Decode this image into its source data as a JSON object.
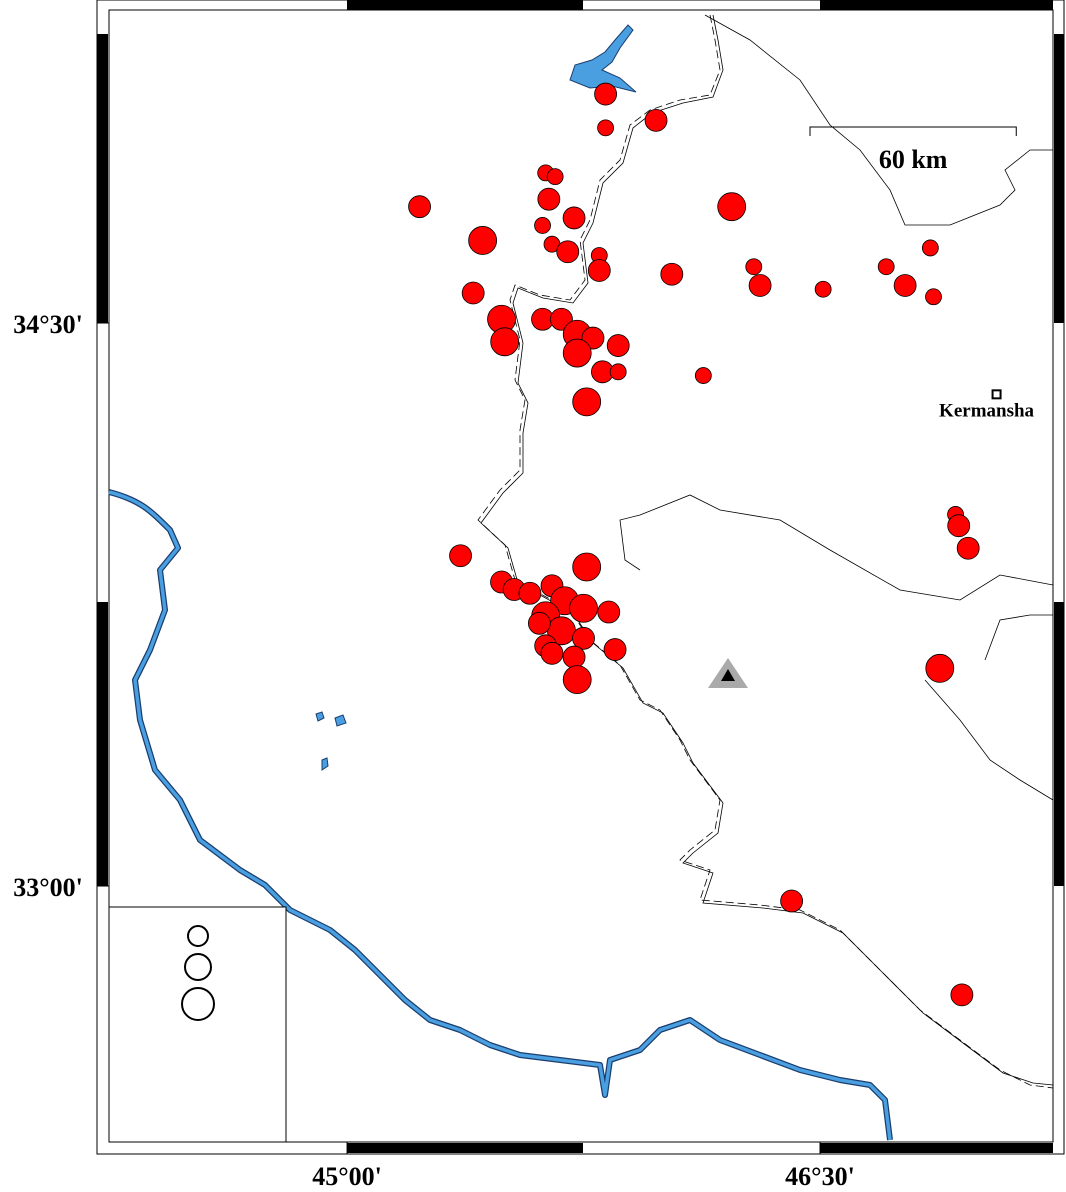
{
  "chart_data": {
    "type": "scatter",
    "xlim": [
      44.245,
      47.239
    ],
    "ylim": [
      32.318,
      35.334
    ],
    "xticks": [
      {
        "value": 45,
        "label": "45°00'"
      },
      {
        "value": 46.5,
        "label": "46°30'"
      }
    ],
    "yticks": [
      {
        "value": 34.5,
        "label": "34°30'"
      },
      {
        "value": 33,
        "label": "33°00'"
      }
    ],
    "color": "#ff0000",
    "x": [
      45.82,
      45.82,
      45.98,
      46.22,
      45.23,
      45.43,
      45.63,
      45.66,
      45.64,
      45.72,
      45.62,
      45.65,
      45.7,
      45.8,
      45.8,
      46.03,
      46.29,
      46.31,
      46.51,
      46.71,
      46.77,
      46.85,
      46.86,
      45.4,
      45.49,
      45.5,
      45.62,
      45.68,
      45.73,
      45.78,
      45.73,
      45.86,
      45.81,
      45.86,
      46.13,
      45.76,
      46.93,
      46.94,
      46.97,
      45.36,
      45.76,
      45.49,
      45.53,
      45.58,
      45.65,
      45.69,
      45.75,
      45.83,
      45.63,
      45.68,
      45.61,
      45.75,
      45.63,
      45.65,
      45.72,
      45.85,
      45.73,
      46.88,
      46.41,
      46.95
    ],
    "y": [
      35.11,
      35.02,
      35.04,
      34.81,
      34.81,
      34.72,
      34.9,
      34.89,
      34.83,
      34.78,
      34.76,
      34.71,
      34.69,
      34.68,
      34.64,
      34.63,
      34.65,
      34.6,
      34.59,
      34.65,
      34.6,
      34.7,
      34.57,
      34.58,
      34.51,
      34.45,
      34.51,
      34.51,
      34.47,
      34.46,
      34.42,
      34.44,
      34.37,
      34.37,
      34.36,
      34.29,
      33.99,
      33.96,
      33.9,
      33.88,
      33.85,
      33.81,
      33.79,
      33.78,
      33.8,
      33.76,
      33.74,
      33.73,
      33.72,
      33.68,
      33.7,
      33.66,
      33.64,
      33.62,
      33.61,
      33.63,
      33.55,
      33.58,
      32.96,
      32.71
    ],
    "sizes": [
      5,
      4,
      5,
      6,
      5,
      6,
      4,
      4,
      5,
      5,
      4,
      4,
      5,
      4,
      5,
      5,
      4,
      5,
      4,
      4,
      5,
      4,
      4,
      5,
      6,
      6,
      5,
      5,
      6,
      5,
      6,
      5,
      5,
      4,
      4,
      6,
      4,
      5,
      5,
      5,
      6,
      5,
      5,
      5,
      5,
      6,
      6,
      5,
      6,
      6,
      5,
      5,
      5,
      5,
      5,
      5,
      6,
      6,
      5,
      5
    ],
    "legend_sizes": [
      4,
      5,
      6
    ],
    "scale_km": 60,
    "scale_label": "60 km",
    "city": {
      "name": "Kermansha",
      "lon": 47.06,
      "lat": 34.31
    },
    "station": {
      "lon": 46.23,
      "lat": 33.59
    }
  }
}
